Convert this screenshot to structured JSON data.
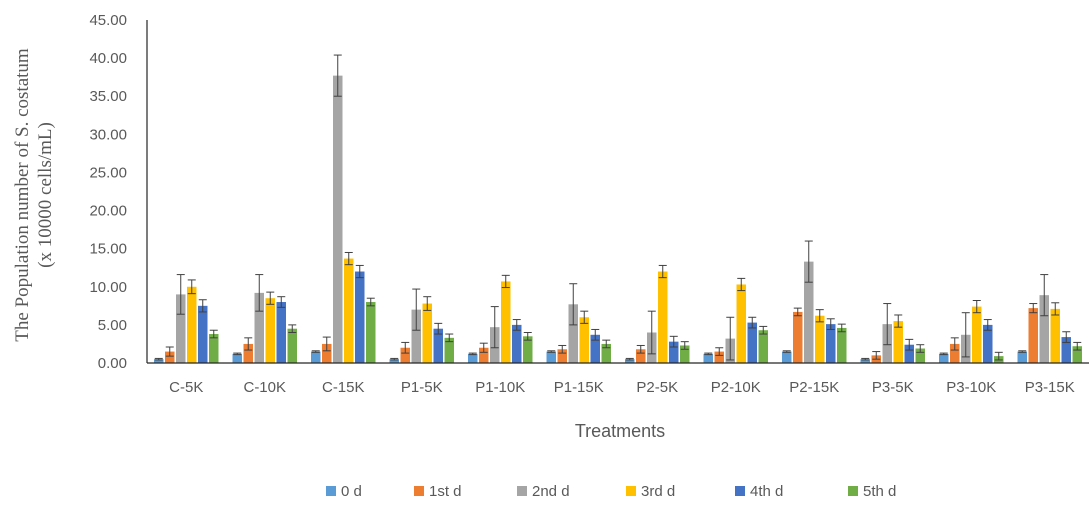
{
  "chart_data": {
    "type": "bar",
    "xlabel": "Treatments",
    "ylabel_lines": [
      "The Population number of S. costatum",
      "(x 10000 cells/mL)"
    ],
    "ylim": [
      0,
      45
    ],
    "ytick_step": 5,
    "ytick_labels": [
      "0.00",
      "5.00",
      "10.00",
      "15.00",
      "20.00",
      "25.00",
      "30.00",
      "35.00",
      "40.00",
      "45.00"
    ],
    "legend_position": "bottom",
    "error_bars": true,
    "categories": [
      "C-5K",
      "C-10K",
      "C-15K",
      "P1-5K",
      "P1-10K",
      "P1-15K",
      "P2-5K",
      "P2-10K",
      "P2-15K",
      "P3-5K",
      "P3-10K",
      "P3-15K"
    ],
    "series": [
      {
        "name": "0 d",
        "color": "#5b9bd5",
        "values": [
          0.5,
          1.2,
          1.5,
          0.5,
          1.2,
          1.5,
          0.5,
          1.2,
          1.5,
          0.5,
          1.2,
          1.5
        ],
        "errors": [
          0.1,
          0.1,
          0.1,
          0.1,
          0.1,
          0.1,
          0.1,
          0.1,
          0.1,
          0.1,
          0.1,
          0.1
        ]
      },
      {
        "name": "1st d",
        "color": "#ed7d31",
        "values": [
          1.5,
          2.5,
          2.5,
          2.0,
          2.0,
          1.8,
          1.8,
          1.5,
          6.7,
          1.0,
          2.5,
          7.2
        ],
        "errors": [
          0.6,
          0.8,
          0.9,
          0.7,
          0.6,
          0.5,
          0.5,
          0.5,
          0.5,
          0.5,
          0.8,
          0.6
        ]
      },
      {
        "name": "2nd d",
        "color": "#a5a5a5",
        "values": [
          9.0,
          9.2,
          37.7,
          7.0,
          4.7,
          7.7,
          4.0,
          3.2,
          13.3,
          5.1,
          3.7,
          8.9
        ],
        "errors": [
          2.6,
          2.4,
          2.7,
          2.7,
          2.7,
          2.7,
          2.8,
          2.8,
          2.7,
          2.7,
          2.9,
          2.7
        ]
      },
      {
        "name": "3rd d",
        "color": "#ffc000",
        "values": [
          10.0,
          8.5,
          13.7,
          7.8,
          10.7,
          6.0,
          12.0,
          10.3,
          6.2,
          5.5,
          7.4,
          7.1
        ],
        "errors": [
          0.9,
          0.8,
          0.8,
          0.9,
          0.8,
          0.8,
          0.8,
          0.8,
          0.8,
          0.8,
          0.8,
          0.8
        ]
      },
      {
        "name": "4th d",
        "color": "#4472c4",
        "values": [
          7.5,
          8.0,
          12.0,
          4.5,
          5.0,
          3.7,
          2.8,
          5.3,
          5.1,
          2.4,
          5.0,
          3.4
        ],
        "errors": [
          0.8,
          0.7,
          0.8,
          0.7,
          0.7,
          0.7,
          0.7,
          0.7,
          0.7,
          0.7,
          0.7,
          0.7
        ]
      },
      {
        "name": "5th d",
        "color": "#70ad47",
        "values": [
          3.8,
          4.5,
          8.0,
          3.3,
          3.5,
          2.5,
          2.3,
          4.3,
          4.6,
          1.9,
          0.9,
          2.2
        ],
        "errors": [
          0.5,
          0.5,
          0.5,
          0.5,
          0.5,
          0.5,
          0.5,
          0.5,
          0.5,
          0.5,
          0.5,
          0.5
        ]
      }
    ]
  }
}
